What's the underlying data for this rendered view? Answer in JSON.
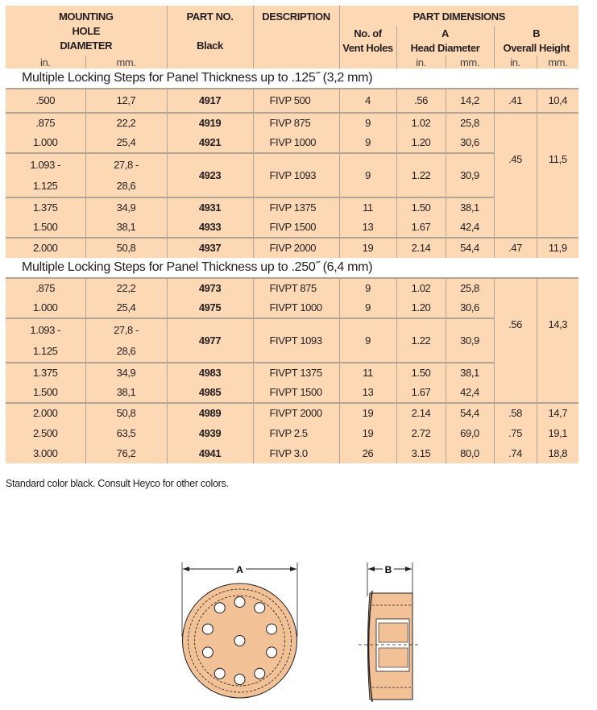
{
  "header": {
    "mounting": [
      "MOUNTING",
      "HOLE",
      "DIAMETER"
    ],
    "part_no": "PART NO.",
    "part_no_sub": "Black",
    "description": "DESCRIPTION",
    "part_dimensions": "PART DIMENSIONS",
    "vent_holes": [
      "No. of",
      "Vent Holes"
    ],
    "a": [
      "A",
      "Head Diameter"
    ],
    "b": [
      "B",
      "Overall Height"
    ],
    "unit_in": "in.",
    "unit_mm": "mm."
  },
  "sections": [
    {
      "title": "Multiple Locking Steps for Panel Thickness up to .125˝ (3,2 mm)",
      "rows": [
        {
          "group_start": true,
          "in": ".500",
          "mm": "12,7",
          "part": "4917",
          "desc": "FIVP 500",
          "vents": "4",
          "a_in": ".56",
          "a_mm": "14,2",
          "b_in": ".41",
          "b_mm": "10,4",
          "b_rowspan": 1
        },
        {
          "group_start": true,
          "in": ".875",
          "mm": "22,2",
          "part": "4919",
          "desc": "FIVP 875",
          "vents": "9",
          "a_in": "1.02",
          "a_mm": "25,8",
          "b_in": ".45",
          "b_mm": "11,5",
          "b_rowspan": 5
        },
        {
          "in": "1.000",
          "mm": "25,4",
          "part": "4921",
          "desc": "FIVP 1000",
          "vents": "9",
          "a_in": "1.20",
          "a_mm": "30,6"
        },
        {
          "group_start": true,
          "tall": true,
          "in": "1.093 -\n1.125",
          "mm": "27,8 -\n28,6",
          "part": "4923",
          "desc": "FIVP 1093",
          "vents": "9",
          "a_in": "1.22",
          "a_mm": "30,9"
        },
        {
          "group_start": true,
          "in": "1.375",
          "mm": "34,9",
          "part": "4931",
          "desc": "FIVP 1375",
          "vents": "11",
          "a_in": "1.50",
          "a_mm": "38,1"
        },
        {
          "in": "1.500",
          "mm": "38,1",
          "part": "4933",
          "desc": "FIVP 1500",
          "vents": "13",
          "a_in": "1.67",
          "a_mm": "42,4"
        },
        {
          "group_start": true,
          "in": "2.000",
          "mm": "50,8",
          "part": "4937",
          "desc": "FIVP 2000",
          "vents": "19",
          "a_in": "2.14",
          "a_mm": "54,4",
          "b_in": ".47",
          "b_mm": "11,9",
          "b_rowspan": 1
        }
      ]
    },
    {
      "title": "Multiple Locking Steps for Panel Thickness up to .250˝ (6,4 mm)",
      "rows": [
        {
          "group_start": true,
          "in": ".875",
          "mm": "22,2",
          "part": "4973",
          "desc": "FIVPT 875",
          "vents": "9",
          "a_in": "1.02",
          "a_mm": "25,8",
          "b_in": ".56",
          "b_mm": "14,3",
          "b_rowspan": 5
        },
        {
          "in": "1.000",
          "mm": "25,4",
          "part": "4975",
          "desc": "FIVPT 1000",
          "vents": "9",
          "a_in": "1.20",
          "a_mm": "30,6"
        },
        {
          "group_start": true,
          "tall": true,
          "in": "1.093 -\n1.125",
          "mm": "27,8 -\n28,6",
          "part": "4977",
          "desc": "FIVPT 1093",
          "vents": "9",
          "a_in": "1.22",
          "a_mm": "30,9"
        },
        {
          "group_start": true,
          "in": "1.375",
          "mm": "34,9",
          "part": "4983",
          "desc": "FIVPT 1375",
          "vents": "11",
          "a_in": "1.50",
          "a_mm": "38,1"
        },
        {
          "in": "1.500",
          "mm": "38,1",
          "part": "4985",
          "desc": "FIVPT 1500",
          "vents": "13",
          "a_in": "1.67",
          "a_mm": "42,4"
        },
        {
          "group_start": true,
          "in": "2.000",
          "mm": "50,8",
          "part": "4989",
          "desc": "FIVPT 2000",
          "vents": "19",
          "a_in": "2.14",
          "a_mm": "54,4",
          "b_in": ".58",
          "b_mm": "14,7",
          "b_rowspan": 1
        },
        {
          "in": "2.500",
          "mm": "63,5",
          "part": "4939",
          "desc": "FIVP 2.5",
          "vents": "19",
          "a_in": "2.72",
          "a_mm": "69,0",
          "b_in": ".75",
          "b_mm": "19,1",
          "b_rowspan": 1
        },
        {
          "in": "3.000",
          "mm": "76,2",
          "part": "4941",
          "desc": "FIVP 3.0",
          "vents": "26",
          "a_in": "3.15",
          "a_mm": "80,0",
          "b_in": ".74",
          "b_mm": "18,8",
          "b_rowspan": 1
        }
      ]
    }
  ],
  "footnote": "Standard color black. Consult Heyco for other colors.",
  "diagram": {
    "label_a": "A",
    "label_b": "B",
    "fill_color": "#f2c196"
  }
}
